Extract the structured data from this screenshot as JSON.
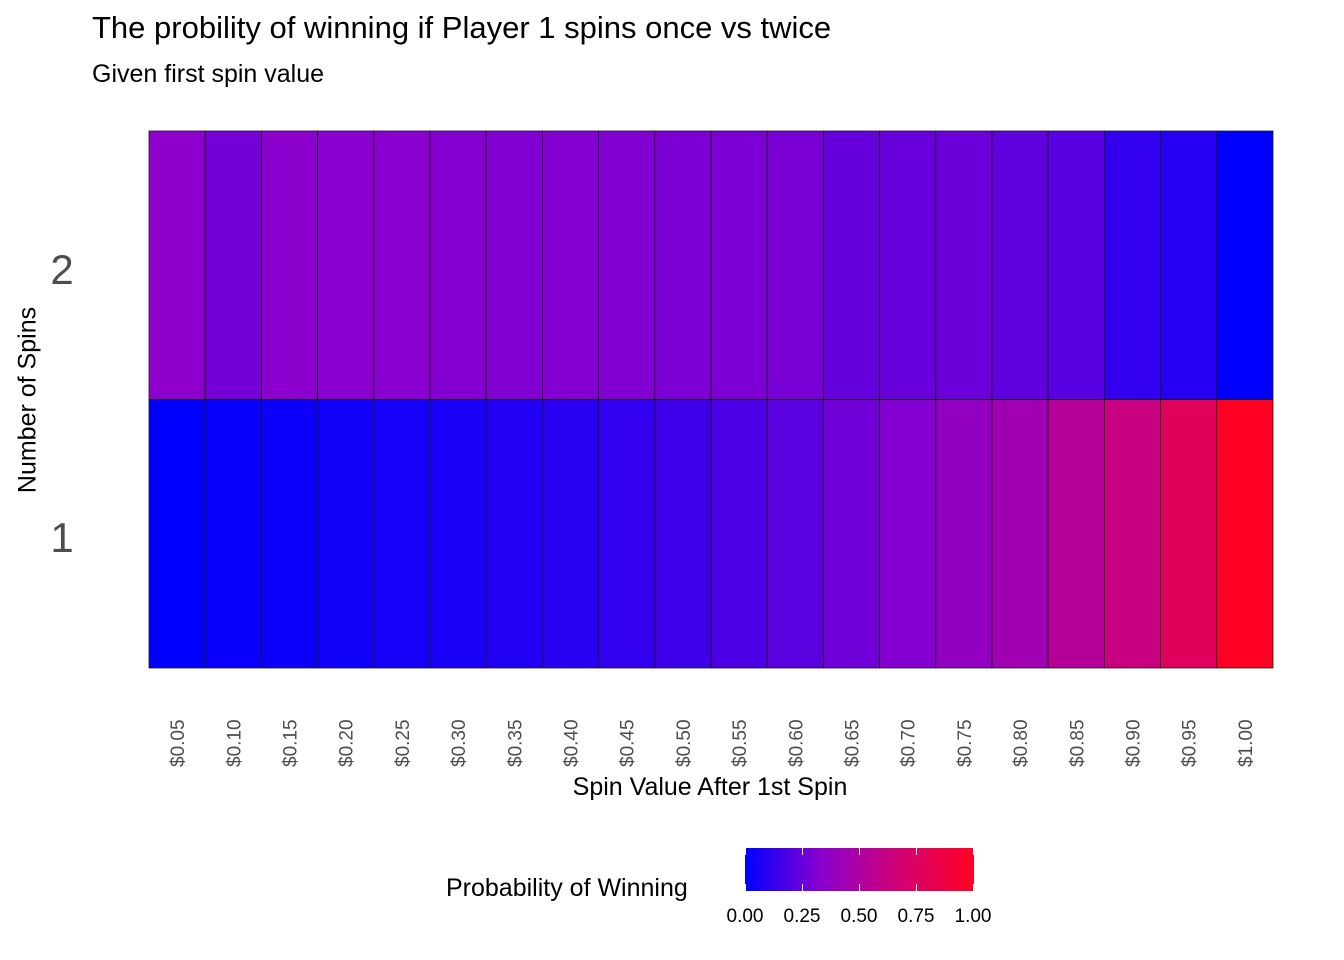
{
  "chart_data": {
    "type": "heatmap",
    "title": "The probility of winning if Player 1 spins once vs twice",
    "subtitle": "Given first spin value",
    "xlabel": "Spin Value After 1st Spin",
    "ylabel": "Number of Spins",
    "x": [
      "$0.05",
      "$0.10",
      "$0.15",
      "$0.20",
      "$0.25",
      "$0.30",
      "$0.35",
      "$0.40",
      "$0.45",
      "$0.50",
      "$0.55",
      "$0.60",
      "$0.65",
      "$0.70",
      "$0.75",
      "$0.80",
      "$0.85",
      "$0.90",
      "$0.95",
      "$1.00"
    ],
    "y": [
      "1",
      "2"
    ],
    "series": [
      {
        "name": "1",
        "values": [
          0.0,
          0.02,
          0.03,
          0.04,
          0.05,
          0.06,
          0.08,
          0.1,
          0.12,
          0.15,
          0.18,
          0.22,
          0.27,
          0.32,
          0.38,
          0.44,
          0.54,
          0.63,
          0.77,
          1.0
        ]
      },
      {
        "name": "2",
        "values": [
          0.35,
          0.28,
          0.34,
          0.33,
          0.33,
          0.32,
          0.31,
          0.32,
          0.31,
          0.3,
          0.3,
          0.29,
          0.24,
          0.25,
          0.26,
          0.23,
          0.21,
          0.12,
          0.09,
          0.0
        ]
      }
    ],
    "legend": {
      "title": "Probability of Winning",
      "ticks": [
        "0.00",
        "0.25",
        "0.50",
        "0.75",
        "1.00"
      ],
      "position": "bottom",
      "colors": [
        "#0000ff",
        "#8a00cf",
        "#d10075",
        "#ff0022"
      ]
    },
    "grid": false
  }
}
